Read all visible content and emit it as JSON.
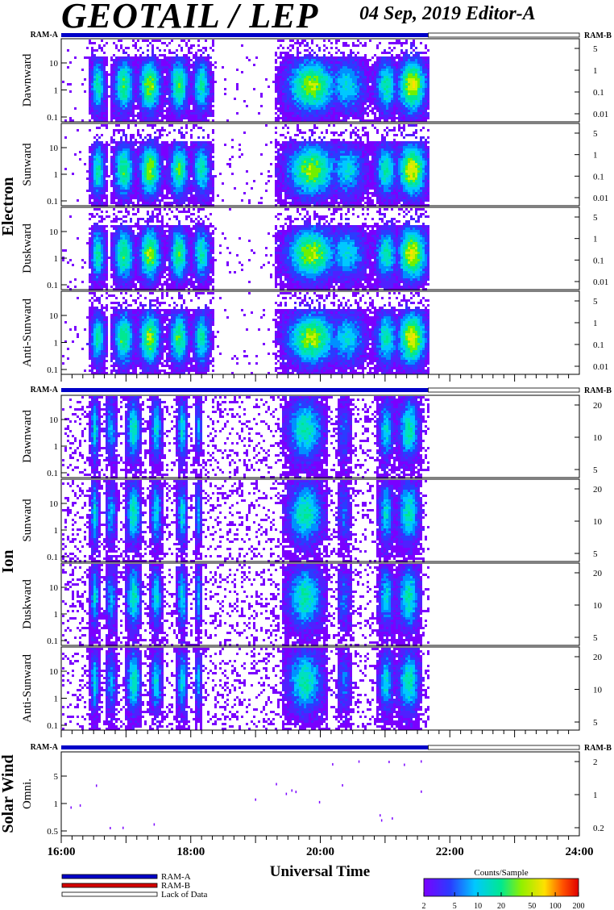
{
  "header": {
    "title": "GEOTAIL / LEP",
    "date_label": "04 Sep, 2019   Editor-A"
  },
  "ram_labels": {
    "a": "RAM-A",
    "b": "RAM-B"
  },
  "groups": [
    {
      "label": "Electron",
      "panels": [
        "Dawnward",
        "Sunward",
        "Duskward",
        "Anti-Sunward"
      ]
    },
    {
      "label": "Ion",
      "panels": [
        "Dawnward",
        "Sunward",
        "Duskward",
        "Anti-Sunward"
      ]
    },
    {
      "label": "Solar Wind",
      "panels": [
        "Omni."
      ]
    }
  ],
  "x_axis": {
    "label": "Universal Time",
    "ticks": [
      "16:00",
      "18:00",
      "20:00",
      "22:00",
      "24:00"
    ],
    "range_hours": [
      16,
      24
    ]
  },
  "legend": {
    "items": [
      {
        "label": "RAM-A",
        "color": "#0000c8"
      },
      {
        "label": "RAM-B",
        "color": "#d40000"
      },
      {
        "label": "Lack of Data",
        "color": "#ffffff"
      }
    ]
  },
  "colorbar": {
    "title": "Counts/Sample",
    "ticks": [
      "2",
      "5",
      "10",
      "20",
      "50",
      "100",
      "200"
    ],
    "range": [
      2,
      200
    ],
    "scale": "log"
  },
  "chart_data": {
    "type": "heatmap",
    "title": "GEOTAIL / LEP",
    "xlabel": "Universal Time",
    "x_range": [
      "16:00",
      "24:00"
    ],
    "data_coverage": [
      "16:00",
      "21:40"
    ],
    "panels": [
      {
        "group": "Electron",
        "ylabel": "Dawnward",
        "left_ticks": [
          "0.1",
          "1",
          "10"
        ],
        "right_ticks": [
          "0.01",
          "0.1",
          "1",
          "5"
        ],
        "y_scale": "log"
      },
      {
        "group": "Electron",
        "ylabel": "Sunward",
        "left_ticks": [
          "0.1",
          "1",
          "10"
        ],
        "right_ticks": [
          "0.01",
          "0.1",
          "1",
          "5"
        ],
        "y_scale": "log"
      },
      {
        "group": "Electron",
        "ylabel": "Duskward",
        "left_ticks": [
          "0.1",
          "1",
          "10"
        ],
        "right_ticks": [
          "0.01",
          "0.1",
          "1",
          "5"
        ],
        "y_scale": "log"
      },
      {
        "group": "Electron",
        "ylabel": "Anti-Sunward",
        "left_ticks": [
          "0.1",
          "1",
          "10"
        ],
        "right_ticks": [
          "0.01",
          "0.1",
          "1",
          "5"
        ],
        "y_scale": "log"
      },
      {
        "group": "Ion",
        "ylabel": "Dawnward",
        "left_ticks": [
          "0.1",
          "1",
          "10"
        ],
        "right_ticks": [
          "5",
          "10",
          "20"
        ],
        "y_scale": "log"
      },
      {
        "group": "Ion",
        "ylabel": "Sunward",
        "left_ticks": [
          "0.1",
          "1",
          "10"
        ],
        "right_ticks": [
          "5",
          "10",
          "20"
        ],
        "y_scale": "log"
      },
      {
        "group": "Ion",
        "ylabel": "Duskward",
        "left_ticks": [
          "0.1",
          "1",
          "10"
        ],
        "right_ticks": [
          "5",
          "10",
          "20"
        ],
        "y_scale": "log"
      },
      {
        "group": "Ion",
        "ylabel": "Anti-Sunward",
        "left_ticks": [
          "0.1",
          "1",
          "10"
        ],
        "right_ticks": [
          "5",
          "10",
          "20"
        ],
        "y_scale": "log"
      },
      {
        "group": "Solar Wind",
        "ylabel": "Omni.",
        "left_ticks": [
          "0.5",
          "1",
          "5"
        ],
        "right_ticks": [
          "0.2",
          "1",
          "2"
        ],
        "y_scale": "log"
      }
    ]
  }
}
